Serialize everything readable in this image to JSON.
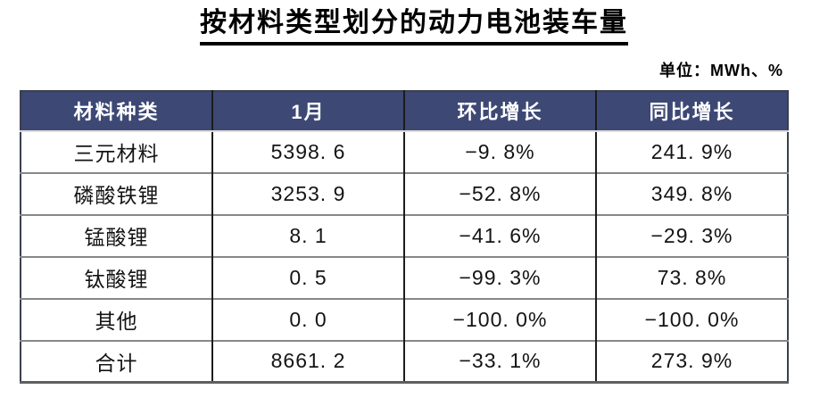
{
  "page": {
    "background": "#ffffff"
  },
  "title": "按材料类型划分的动力电池装车量",
  "unit_label": "单位：MWh、%",
  "table": {
    "header_bg": "#3d4875",
    "header_text_color": "#ffffff",
    "grid_line_color": "#878787",
    "column_line_color": "#1c1c1c",
    "columns": [
      "材料种类",
      "1月",
      "环比增长",
      "同比增长"
    ],
    "rows": [
      [
        "三元材料",
        "5398. 6",
        "−9. 8%",
        "241. 9%"
      ],
      [
        "磷酸铁锂",
        "3253. 9",
        "−52. 8%",
        "349. 8%"
      ],
      [
        "锰酸锂",
        "8. 1",
        "−41. 6%",
        "−29. 3%"
      ],
      [
        "钛酸锂",
        "0. 5",
        "−99. 3%",
        "73. 8%"
      ],
      [
        "其他",
        "0. 0",
        "−100. 0%",
        "−100. 0%"
      ],
      [
        "合计",
        "8661. 2",
        "−33. 1%",
        "273. 9%"
      ]
    ]
  },
  "chart_data": {
    "type": "table",
    "title": "按材料类型划分的动力电池装车量",
    "unit": "MWh、%",
    "columns": [
      "材料种类",
      "1月",
      "环比增长",
      "同比增长"
    ],
    "categories": [
      "三元材料",
      "磷酸铁锂",
      "锰酸锂",
      "钛酸锂",
      "其他",
      "合计"
    ],
    "series": [
      {
        "name": "1月",
        "unit": "MWh",
        "values": [
          5398.6,
          3253.9,
          8.1,
          0.5,
          0.0,
          8661.2
        ]
      },
      {
        "name": "环比增长",
        "unit": "%",
        "values": [
          -9.8,
          -52.8,
          -41.6,
          -99.3,
          -100.0,
          -33.1
        ]
      },
      {
        "name": "同比增长",
        "unit": "%",
        "values": [
          241.9,
          349.8,
          -29.3,
          73.8,
          -100.0,
          273.9
        ]
      }
    ]
  }
}
